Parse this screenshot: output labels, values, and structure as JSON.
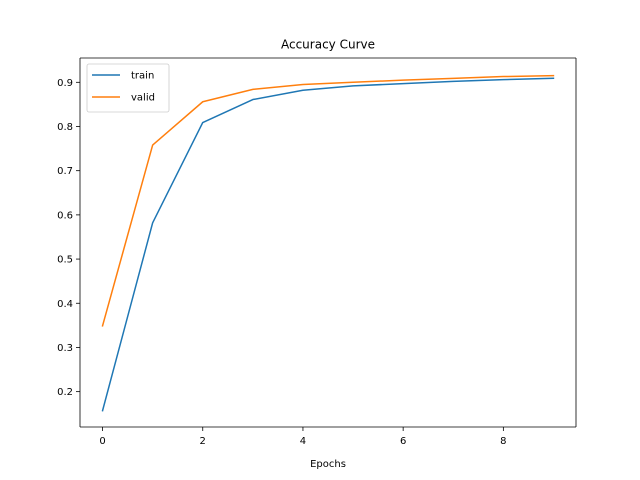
{
  "chart_data": {
    "type": "line",
    "title": "Accuracy Curve",
    "xlabel": "Epochs",
    "ylabel": "",
    "x": [
      0,
      1,
      2,
      3,
      4,
      5,
      6,
      7,
      8,
      9
    ],
    "xlim": [
      -0.45,
      9.45
    ],
    "ylim": [
      0.12,
      0.955
    ],
    "xticks": [
      0,
      2,
      4,
      6,
      8
    ],
    "yticks": [
      0.2,
      0.3,
      0.4,
      0.5,
      0.6,
      0.7,
      0.8,
      0.9
    ],
    "grid": false,
    "legend_position": "top-left",
    "series": [
      {
        "name": "train",
        "color": "#1f77b4",
        "values": [
          0.157,
          0.582,
          0.809,
          0.861,
          0.882,
          0.892,
          0.897,
          0.902,
          0.906,
          0.909
        ]
      },
      {
        "name": "valid",
        "color": "#ff7f0e",
        "values": [
          0.349,
          0.758,
          0.856,
          0.884,
          0.895,
          0.9,
          0.905,
          0.909,
          0.913,
          0.915
        ]
      }
    ]
  }
}
